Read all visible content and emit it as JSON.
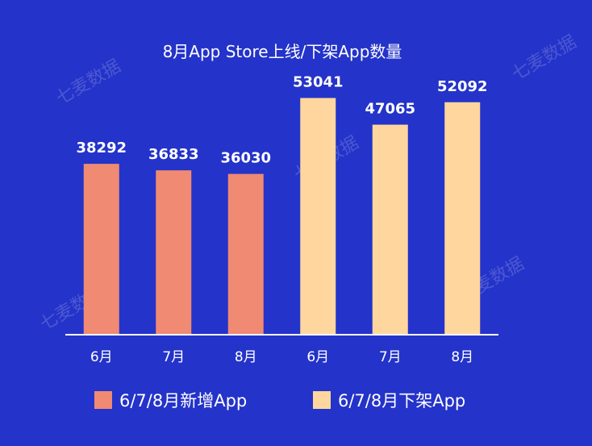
{
  "chart_data": {
    "type": "bar",
    "title": "8月App Store上线/下架App数量",
    "categories": [
      "6月",
      "7月",
      "8月",
      "6月",
      "7月",
      "8月"
    ],
    "series": [
      {
        "name": "6/7/8月新增App",
        "color": "#f08a73",
        "values": [
          38292,
          36833,
          36030,
          null,
          null,
          null
        ]
      },
      {
        "name": "6/7/8月下架App",
        "color": "#ffd79e",
        "values": [
          null,
          null,
          null,
          53041,
          47065,
          52092
        ]
      }
    ],
    "xlabel": "",
    "ylabel": "",
    "ylim": [
      0,
      60000
    ],
    "grid": false,
    "show_yaxis": false,
    "legend_position": "bottom",
    "axis_color": "#ffffff"
  },
  "watermark": "七麦数据"
}
